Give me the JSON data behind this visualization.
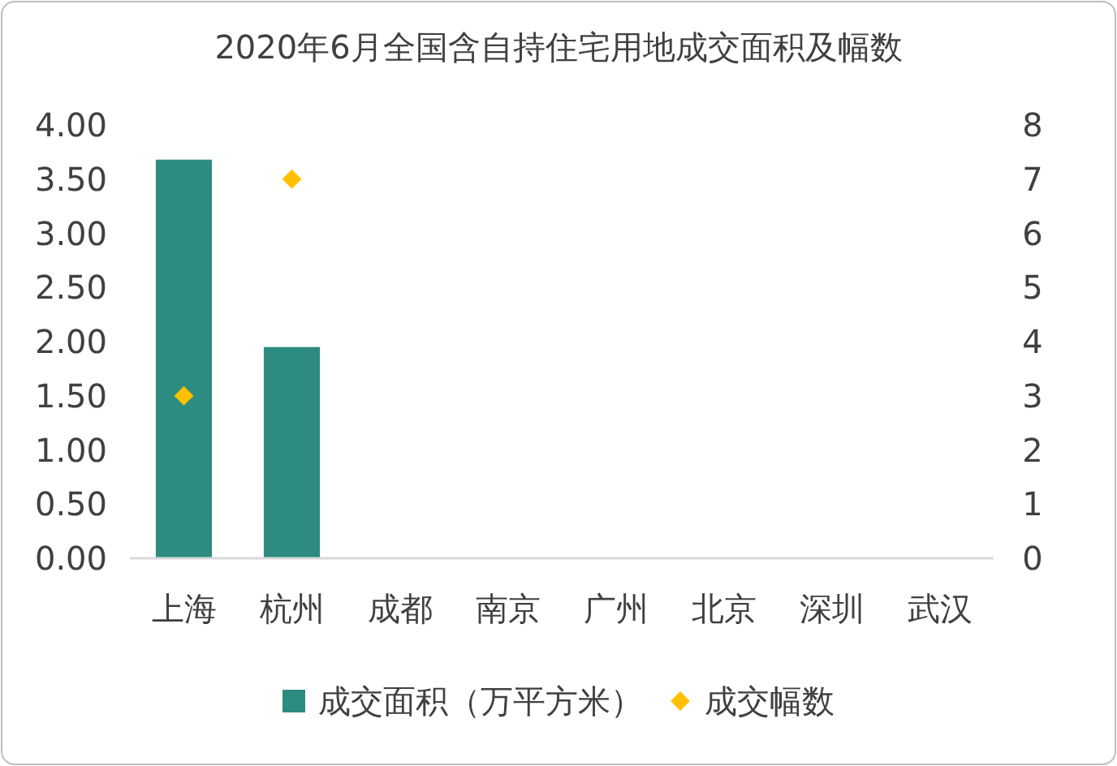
{
  "chart_data": {
    "type": "bar",
    "title": "2020年6月全国含自持住宅用地成交面积及幅数",
    "categories": [
      "上海",
      "杭州",
      "成都",
      "南京",
      "广州",
      "北京",
      "深圳",
      "武汉"
    ],
    "series": [
      {
        "name": "成交面积（万平方米）",
        "color": "#2e8b7f",
        "values": [
          3.68,
          1.95,
          null,
          null,
          null,
          null,
          null,
          null
        ]
      },
      {
        "name": "成交幅数",
        "type": "scatter",
        "axis": "y2",
        "marker": "diamond",
        "color": "#ffc000",
        "values": [
          3,
          7,
          null,
          null,
          null,
          null,
          null,
          null
        ]
      }
    ],
    "ylim": [
      0,
      4
    ],
    "yticks": [
      {
        "value": 0,
        "label": "0.00"
      },
      {
        "value": 0.5,
        "label": "0.50"
      },
      {
        "value": 1,
        "label": "1.00"
      },
      {
        "value": 1.5,
        "label": "1.50"
      },
      {
        "value": 2,
        "label": "2.00"
      },
      {
        "value": 2.5,
        "label": "2.50"
      },
      {
        "value": 3,
        "label": "3.00"
      },
      {
        "value": 3.5,
        "label": "3.50"
      },
      {
        "value": 4,
        "label": "4.00"
      }
    ],
    "y2lim": [
      0,
      8
    ],
    "y2ticks": [
      0,
      1,
      2,
      3,
      4,
      5,
      6,
      7,
      8
    ],
    "grid": false,
    "legend": "bottom"
  }
}
